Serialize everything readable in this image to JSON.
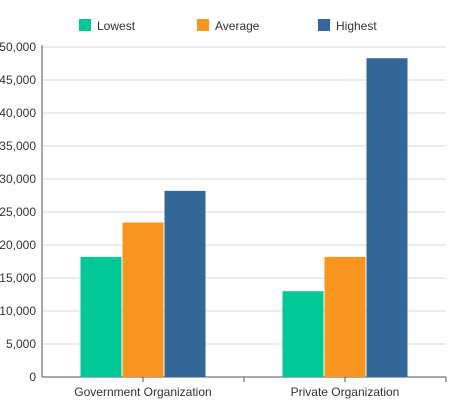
{
  "chart_data": {
    "type": "bar",
    "categories": [
      "Government Organization",
      "Private Organization"
    ],
    "series": [
      {
        "name": "Lowest",
        "values": [
          18200,
          13000
        ],
        "color": "#00c897"
      },
      {
        "name": "Average",
        "values": [
          23400,
          18200
        ],
        "color": "#f7951f"
      },
      {
        "name": "Highest",
        "values": [
          28200,
          48300
        ],
        "color": "#336699"
      }
    ],
    "yticks": [
      "0",
      "5,000",
      "10,000",
      "15,000",
      "20,000",
      "25,000",
      "30,000",
      "35,000",
      "40,000",
      "45,000",
      "50,000"
    ],
    "ytick_values": [
      0,
      5000,
      10000,
      15000,
      20000,
      25000,
      30000,
      35000,
      40000,
      45000,
      50000
    ],
    "ylim": [
      0,
      50000
    ],
    "grid": true,
    "legend_position": "top",
    "title": "",
    "xlabel": "",
    "ylabel": ""
  }
}
